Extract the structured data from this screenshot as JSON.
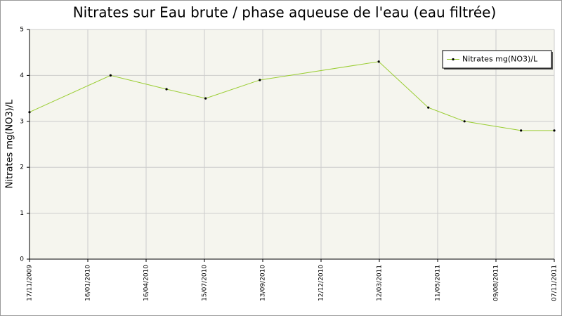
{
  "chart_data": {
    "type": "line",
    "title": "Nitrates sur Eau brute / phase aqueuse de l'eau (eau filtrée)",
    "y_label": "Nitrates mg(NO3)/L",
    "x": [
      0,
      1.39,
      2.35,
      3.02,
      3.95,
      5.99,
      6.84,
      7.46,
      8.43,
      9
    ],
    "series": [
      {
        "name": "Nitrates mg(NO3)/L",
        "color": "#9acd32",
        "values": [
          3.2,
          4.0,
          3.7,
          3.5,
          3.9,
          4.3,
          3.3,
          3.0,
          2.8,
          2.8
        ]
      }
    ],
    "xlim": [
      0,
      9
    ],
    "xticks": [
      {
        "value": 0,
        "label": "17/11/2009"
      },
      {
        "value": 1,
        "label": "16/01/2010"
      },
      {
        "value": 2,
        "label": "16/04/2010"
      },
      {
        "value": 3,
        "label": "15/07/2010"
      },
      {
        "value": 4,
        "label": "13/09/2010"
      },
      {
        "value": 5,
        "label": "12/12/2010"
      },
      {
        "value": 6,
        "label": "12/03/2011"
      },
      {
        "value": 7,
        "label": "11/05/2011"
      },
      {
        "value": 8,
        "label": "09/08/2011"
      },
      {
        "value": 9,
        "label": "07/11/2011"
      }
    ],
    "ylim": [
      0,
      5
    ],
    "yticks": [
      0,
      1,
      2,
      3,
      4,
      5
    ],
    "grid": true,
    "legend_position": "upper right"
  }
}
